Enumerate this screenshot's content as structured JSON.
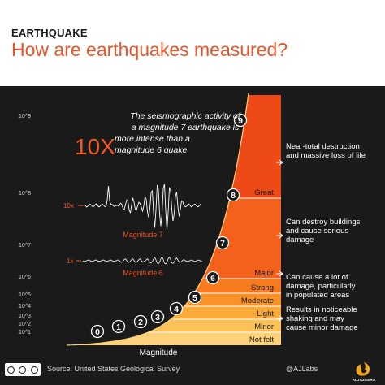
{
  "header": {
    "kicker": "EARTHQUAKE",
    "headline": "How are earthquakes measured?"
  },
  "annotation": {
    "line1": "The seismographic activity of",
    "line2": "a magnitude 7 earthquake is",
    "big": "10X",
    "line3": "more intense than a",
    "line4": "magnitude 6 quake"
  },
  "seismogram": {
    "m7_scale": "10x",
    "m7_label": "Magnitude 7",
    "m6_scale": "1x",
    "m6_label": "Magnitude 6"
  },
  "footer": {
    "source": "Source: United States Geological Survey",
    "handle": "@AJLabs",
    "logo_text": "ALJAZEERA"
  },
  "colors": {
    "headline": "#e8562a",
    "panel": "#1a1a1a",
    "bands": [
      "#fdd27a",
      "#fcc25a",
      "#fbab3a",
      "#f99228",
      "#f77a1f",
      "#f3611c",
      "#ee4a18"
    ]
  },
  "chart_data": {
    "type": "area",
    "xlabel": "Magnitude",
    "x": [
      0,
      1,
      2,
      3,
      4,
      5,
      6,
      7,
      8,
      9
    ],
    "y": [
      1,
      10,
      100,
      1000,
      10000,
      100000,
      1000000,
      10000000,
      100000000,
      1000000000
    ],
    "y_tick_labels": [
      "10^1",
      "10^2",
      "10^3",
      "10^4",
      "10^5",
      "10^6",
      "10^7",
      "10^8",
      "10^9"
    ],
    "bands": [
      {
        "label": "Not felt",
        "effect": ""
      },
      {
        "label": "Minor",
        "effect": "Results in noticeable shaking and may cause minor damage"
      },
      {
        "label": "Light",
        "effect": ""
      },
      {
        "label": "Moderate",
        "effect": ""
      },
      {
        "label": "Strong",
        "effect": "Can cause a lot of damage, particularly in populated areas"
      },
      {
        "label": "Major",
        "effect": "Can destroy buildings and cause serious damage"
      },
      {
        "label": "Great",
        "effect": "Near-total destruction and massive loss of life"
      }
    ],
    "effect_lines": [
      [
        "Results in noticeable",
        "shaking and may",
        "cause minor damage"
      ],
      [
        "Can cause a lot of",
        "damage, particularly",
        "in populated areas"
      ],
      [
        "Can destroy buildings",
        "and cause serious",
        "damage"
      ],
      [
        "Near-total destruction",
        "and massive loss of life"
      ]
    ]
  }
}
